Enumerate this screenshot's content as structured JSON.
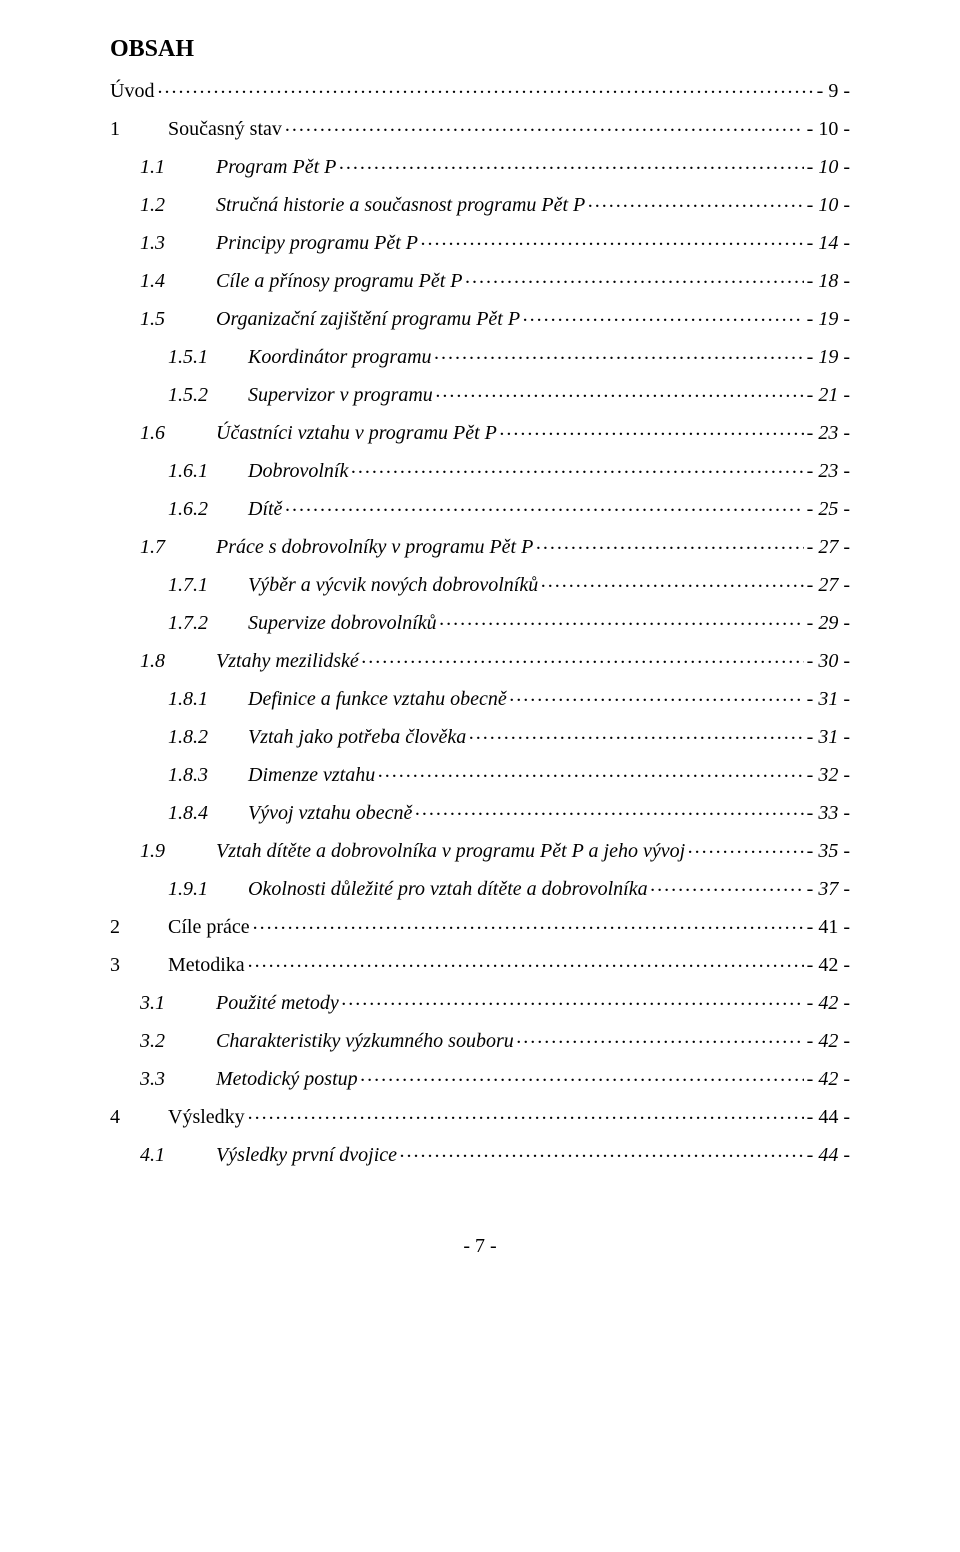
{
  "title": "OBSAH",
  "footer": "- 7 -",
  "entries": [
    {
      "level": 0,
      "italic": false,
      "num": "",
      "text": "Úvod",
      "page": "- 9 -"
    },
    {
      "level": 0,
      "italic": false,
      "num": "1",
      "text": "Současný stav",
      "page": "- 10 -"
    },
    {
      "level": 1,
      "italic": true,
      "num": "1.1",
      "text": "Program Pět P",
      "page": "- 10 -"
    },
    {
      "level": 1,
      "italic": true,
      "num": "1.2",
      "text": "Stručná historie a současnost programu Pět P",
      "page": "- 10 -"
    },
    {
      "level": 1,
      "italic": true,
      "num": "1.3",
      "text": "Principy programu Pět P",
      "page": "- 14 -"
    },
    {
      "level": 1,
      "italic": true,
      "num": "1.4",
      "text": "Cíle a přínosy programu Pět P",
      "page": "- 18 -"
    },
    {
      "level": 1,
      "italic": true,
      "num": "1.5",
      "text": "Organizační zajištění programu Pět P",
      "page": "- 19 -"
    },
    {
      "level": 2,
      "italic": true,
      "num": "1.5.1",
      "text": "Koordinátor programu",
      "page": "- 19 -"
    },
    {
      "level": 2,
      "italic": true,
      "num": "1.5.2",
      "text": "Supervizor v programu",
      "page": "- 21 -"
    },
    {
      "level": 1,
      "italic": true,
      "num": "1.6",
      "text": "Účastníci vztahu v programu Pět P",
      "page": "- 23 -"
    },
    {
      "level": 2,
      "italic": true,
      "num": "1.6.1",
      "text": "Dobrovolník",
      "page": "- 23 -"
    },
    {
      "level": 2,
      "italic": true,
      "num": "1.6.2",
      "text": "Dítě",
      "page": "- 25 -"
    },
    {
      "level": 1,
      "italic": true,
      "num": "1.7",
      "text": "Práce s dobrovolníky v programu Pět P",
      "page": "- 27 -"
    },
    {
      "level": 2,
      "italic": true,
      "num": "1.7.1",
      "text": "Výběr a výcvik nových dobrovolníků",
      "page": "- 27 -"
    },
    {
      "level": 2,
      "italic": true,
      "num": "1.7.2",
      "text": "Supervize dobrovolníků",
      "page": "- 29 -"
    },
    {
      "level": 1,
      "italic": true,
      "num": "1.8",
      "text": "Vztahy mezilidské",
      "page": "- 30 -"
    },
    {
      "level": 2,
      "italic": true,
      "num": "1.8.1",
      "text": "Definice a funkce vztahu obecně",
      "page": "- 31 -"
    },
    {
      "level": 2,
      "italic": true,
      "num": "1.8.2",
      "text": "Vztah jako potřeba člověka",
      "page": "- 31 -"
    },
    {
      "level": 2,
      "italic": true,
      "num": "1.8.3",
      "text": "Dimenze vztahu",
      "page": "- 32 -"
    },
    {
      "level": 2,
      "italic": true,
      "num": "1.8.4",
      "text": "Vývoj vztahu obecně",
      "page": "- 33 -"
    },
    {
      "level": 1,
      "italic": true,
      "num": "1.9",
      "text": "Vztah dítěte a dobrovolníka v programu Pět P a jeho vývoj",
      "page": "- 35 -"
    },
    {
      "level": 2,
      "italic": true,
      "num": "1.9.1",
      "text": "Okolnosti důležité pro vztah dítěte a dobrovolníka",
      "page": "- 37 -"
    },
    {
      "level": 0,
      "italic": false,
      "num": "2",
      "text": "Cíle práce",
      "page": "- 41 -"
    },
    {
      "level": 0,
      "italic": false,
      "num": "3",
      "text": "Metodika",
      "page": "- 42 -"
    },
    {
      "level": 1,
      "italic": true,
      "num": "3.1",
      "text": "Použité metody",
      "page": "- 42 -"
    },
    {
      "level": 1,
      "italic": true,
      "num": "3.2",
      "text": "Charakteristiky výzkumného souboru",
      "page": "- 42 -"
    },
    {
      "level": 1,
      "italic": true,
      "num": "3.3",
      "text": "Metodický postup",
      "page": "- 42 -"
    },
    {
      "level": 0,
      "italic": false,
      "num": "4",
      "text": "Výsledky",
      "page": "- 44 -"
    },
    {
      "level": 1,
      "italic": true,
      "num": "4.1",
      "text": "Výsledky první dvojice",
      "page": "- 44 -"
    }
  ]
}
